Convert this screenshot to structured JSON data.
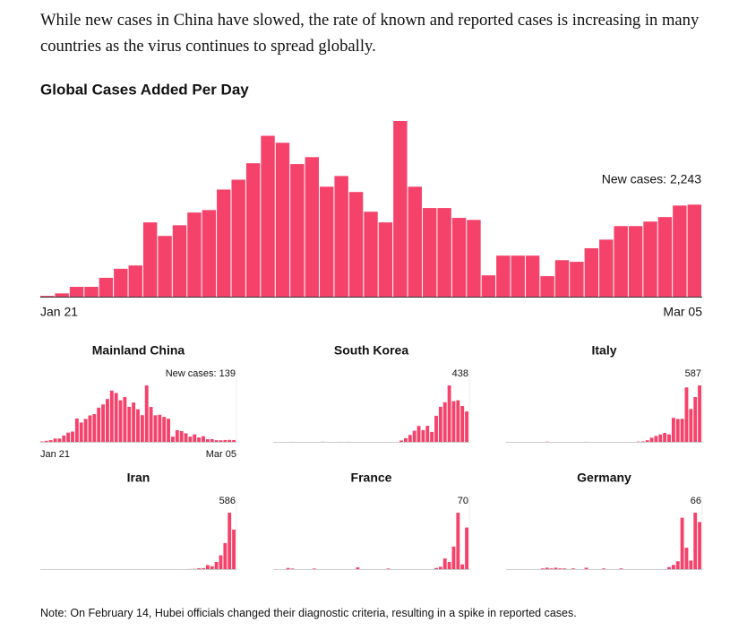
{
  "intro": "While new cases in China have slowed, the rate of known and reported cases is increasing in many countries as the virus continues to spread globally.",
  "note": "Note: On February 14, Hubei officials changed their diagnostic criteria, resulting in a spike in reported cases.",
  "chart_data": [
    {
      "type": "bar",
      "title": "Global Cases Added Per Day",
      "color": "#f5426b",
      "categories": [
        "Jan 21",
        null,
        null,
        null,
        null,
        null,
        null,
        null,
        null,
        null,
        null,
        null,
        null,
        null,
        null,
        null,
        null,
        null,
        null,
        null,
        null,
        null,
        null,
        null,
        null,
        null,
        null,
        null,
        null,
        null,
        null,
        null,
        null,
        null,
        null,
        null,
        null,
        null,
        null,
        null,
        null,
        null,
        null,
        null,
        "Mar 05"
      ],
      "values": [
        20,
        80,
        240,
        240,
        460,
        680,
        760,
        1810,
        1480,
        1740,
        2050,
        2110,
        2610,
        2850,
        3250,
        3920,
        3750,
        3230,
        3400,
        2680,
        2940,
        2550,
        2070,
        1810,
        4280,
        2680,
        2160,
        2160,
        1920,
        1870,
        520,
        1000,
        1000,
        1000,
        500,
        890,
        850,
        1180,
        1390,
        1720,
        1720,
        1830,
        1940,
        2220,
        2243
      ],
      "value_labels": [
        null,
        null,
        null,
        null,
        null,
        null,
        null,
        null,
        null,
        null,
        null,
        null,
        null,
        null,
        null,
        null,
        null,
        null,
        null,
        null,
        null,
        null,
        null,
        null,
        null,
        null,
        null,
        null,
        null,
        null,
        null,
        null,
        null,
        null,
        null,
        null,
        null,
        null,
        null,
        null,
        null,
        null,
        null,
        null,
        "New cases: 2,243"
      ]
    },
    {
      "type": "bar",
      "title": "Mainland China",
      "color": "#f5426b",
      "categories": [
        "Jan 21",
        null,
        null,
        null,
        null,
        null,
        null,
        null,
        null,
        null,
        null,
        null,
        null,
        null,
        null,
        null,
        null,
        null,
        null,
        null,
        null,
        null,
        null,
        null,
        null,
        null,
        null,
        null,
        null,
        null,
        null,
        null,
        null,
        null,
        null,
        null,
        null,
        null,
        null,
        null,
        null,
        null,
        null,
        null,
        "Mar 05"
      ],
      "values": [
        30,
        80,
        130,
        250,
        250,
        480,
        700,
        780,
        1770,
        1460,
        1740,
        2000,
        2100,
        2590,
        2830,
        3240,
        3880,
        3700,
        3150,
        3390,
        2650,
        2980,
        2470,
        2020,
        4270,
        2640,
        2010,
        2050,
        1890,
        1750,
        400,
        890,
        820,
        650,
        400,
        570,
        330,
        430,
        200,
        210,
        125,
        120,
        140,
        150,
        139
      ],
      "value_labels": [
        null,
        null,
        null,
        null,
        null,
        null,
        null,
        null,
        null,
        null,
        null,
        null,
        null,
        null,
        null,
        null,
        null,
        null,
        null,
        null,
        null,
        null,
        null,
        null,
        null,
        null,
        null,
        null,
        null,
        null,
        null,
        null,
        null,
        null,
        null,
        null,
        null,
        null,
        null,
        null,
        null,
        null,
        null,
        null,
        "New cases: 139"
      ]
    },
    {
      "type": "bar",
      "title": "South Korea",
      "color": "#f5426b",
      "values": [
        0,
        0,
        0,
        0,
        1,
        0,
        0,
        0,
        0,
        0,
        0,
        2,
        0,
        0,
        0,
        1,
        0,
        1,
        0,
        0,
        0,
        0,
        0,
        0,
        0,
        0,
        0,
        0,
        0,
        20,
        53,
        100,
        161,
        229,
        169,
        231,
        143,
        376,
        505,
        571,
        813,
        586,
        599,
        516,
        438
      ]
    },
    {
      "type": "bar",
      "title": "Italy",
      "color": "#f5426b",
      "values": [
        0,
        0,
        0,
        0,
        0,
        0,
        0,
        0,
        0,
        2,
        0,
        0,
        0,
        0,
        0,
        0,
        0,
        0,
        1,
        0,
        0,
        0,
        0,
        0,
        0,
        0,
        0,
        0,
        0,
        0,
        3,
        5,
        17,
        43,
        62,
        77,
        93,
        78,
        250,
        238,
        240,
        566,
        342,
        466,
        587
      ]
    },
    {
      "type": "bar",
      "title": "Iran",
      "color": "#f5426b",
      "values": [
        0,
        0,
        0,
        0,
        0,
        0,
        0,
        0,
        0,
        0,
        0,
        0,
        0,
        0,
        0,
        0,
        0,
        0,
        0,
        0,
        0,
        0,
        0,
        0,
        0,
        0,
        0,
        0,
        0,
        0,
        0,
        0,
        0,
        0,
        2,
        4,
        13,
        15,
        61,
        43,
        106,
        205,
        385,
        835,
        586
      ]
    },
    {
      "type": "bar",
      "title": "France",
      "color": "#f5426b",
      "values": [
        0,
        0,
        0,
        2,
        1,
        0,
        0,
        0,
        0,
        1,
        0,
        0,
        0,
        0,
        0,
        0,
        0,
        0,
        0,
        3,
        0,
        0,
        0,
        0,
        0,
        0,
        1,
        0,
        0,
        0,
        0,
        0,
        0,
        0,
        0,
        0,
        0,
        2,
        4,
        18,
        12,
        38,
        95,
        8,
        70
      ]
    },
    {
      "type": "bar",
      "title": "Germany",
      "color": "#f5426b",
      "values": [
        0,
        0,
        0,
        0,
        0,
        0,
        0,
        0,
        1,
        2,
        1,
        2,
        1,
        1,
        0,
        1,
        0,
        0,
        2,
        0,
        0,
        0,
        1,
        0,
        0,
        0,
        1,
        0,
        0,
        0,
        0,
        0,
        0,
        0,
        0,
        0,
        0,
        3,
        6,
        11,
        72,
        30,
        12,
        79,
        66
      ]
    }
  ]
}
